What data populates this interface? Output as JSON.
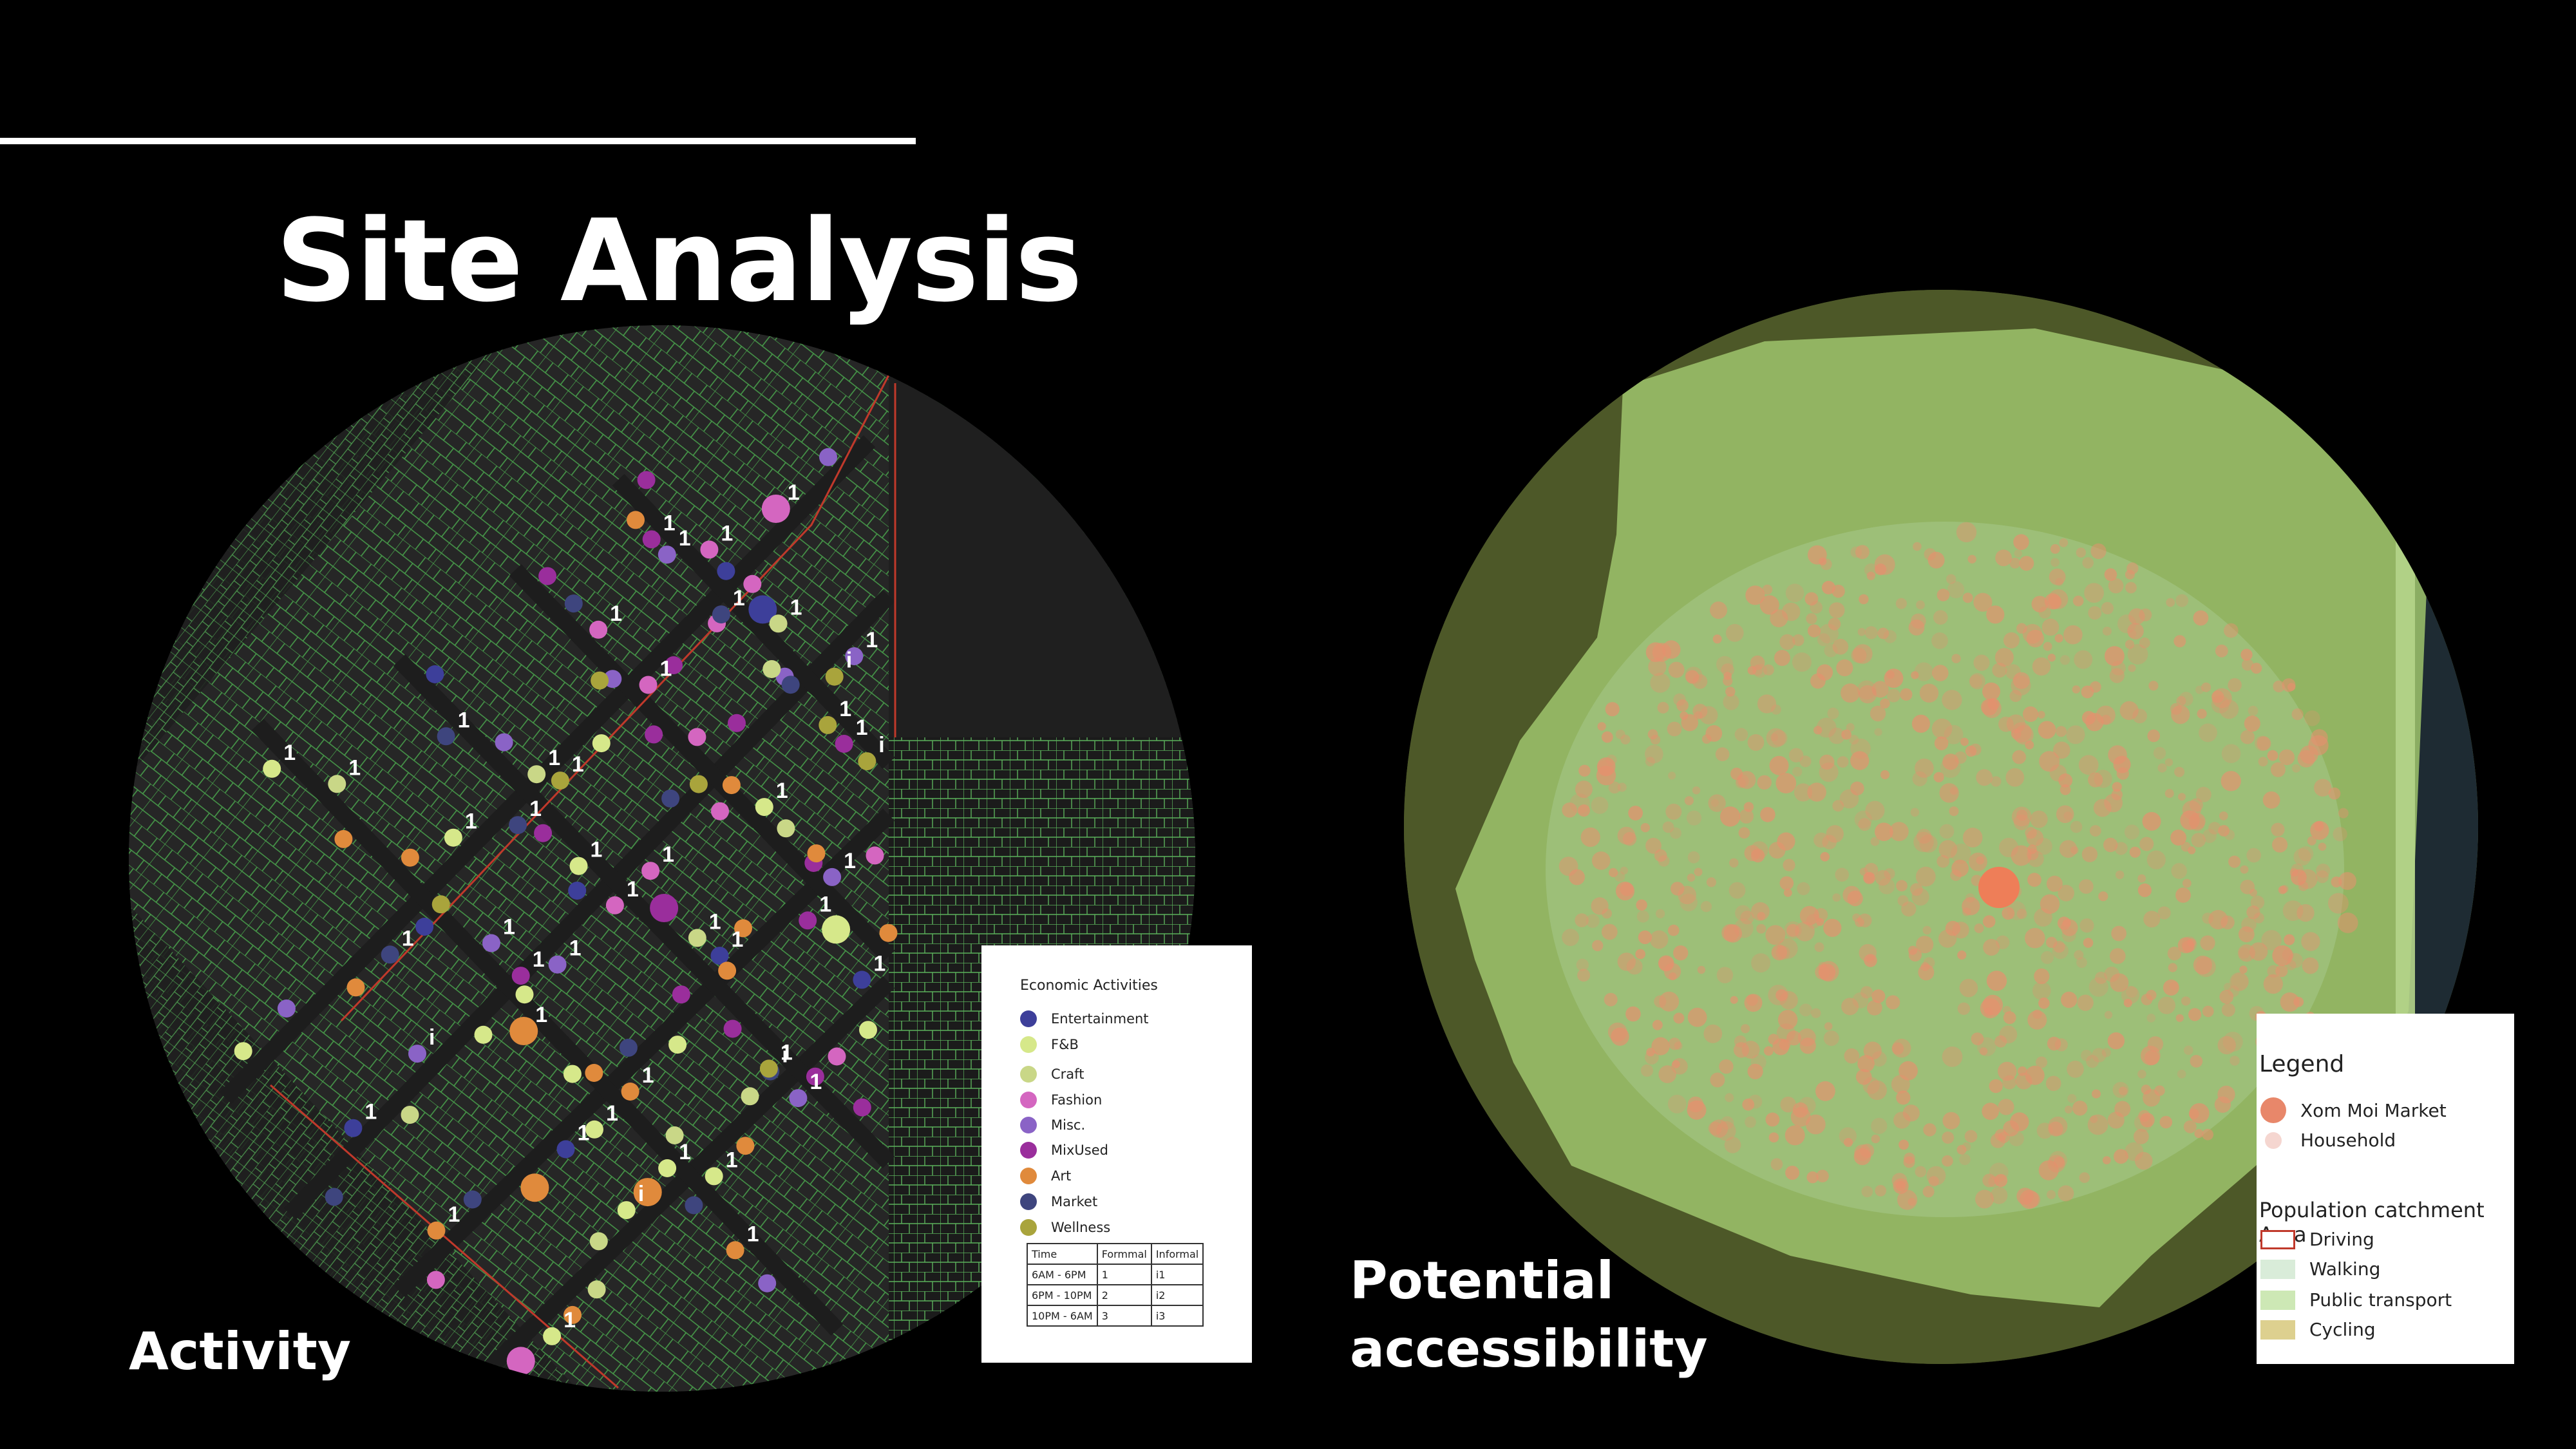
{
  "slide": {
    "title": "Site Analysis",
    "caption_left": "Activity",
    "caption_right_line1": "Potential",
    "caption_right_line2": "accessibility"
  },
  "activity_legend": {
    "title": "Economic Activities",
    "items": [
      {
        "label": "Entertainment",
        "color": "#3d3f9a"
      },
      {
        "label": "F&B",
        "color": "#d6e88a"
      },
      {
        "label": "Craft",
        "color": "#c9d787"
      },
      {
        "label": "Fashion",
        "color": "#d466c0"
      },
      {
        "label": "Misc.",
        "color": "#8a63c6"
      },
      {
        "label": "MixUsed",
        "color": "#9a2e9c"
      },
      {
        "label": "Art",
        "color": "#e08a3c"
      },
      {
        "label": "Market",
        "color": "#3e457e"
      },
      {
        "label": "Wellness",
        "color": "#a9a43c"
      }
    ],
    "table": {
      "headers": [
        "Time",
        "Formmal",
        "Informal"
      ],
      "rows": [
        [
          "6AM - 6PM",
          "1",
          "i1"
        ],
        [
          "6PM - 10PM",
          "2",
          "i2"
        ],
        [
          "10PM - 6AM",
          "3",
          "i3"
        ]
      ]
    }
  },
  "activity_map": {
    "point_labels": [
      "1",
      "i"
    ]
  },
  "access_legend": {
    "heading": "Legend",
    "markers": [
      {
        "label": "Xom Moi Market",
        "color": "#e8876a"
      },
      {
        "label": "Household",
        "color": "#f5d6d0"
      }
    ],
    "subheading": "Population catchment Area",
    "areas": [
      {
        "label": "Driving",
        "fill": "#ffffff",
        "border": "#c0392b"
      },
      {
        "label": "Walking",
        "fill": "#d9ecd9",
        "border": "#d9ecd9"
      },
      {
        "label": "Public transport",
        "fill": "#cde8b5",
        "border": "#cde8b5"
      },
      {
        "label": "Cycling",
        "fill": "#ddd08f",
        "border": "#ddd08f"
      }
    ]
  }
}
